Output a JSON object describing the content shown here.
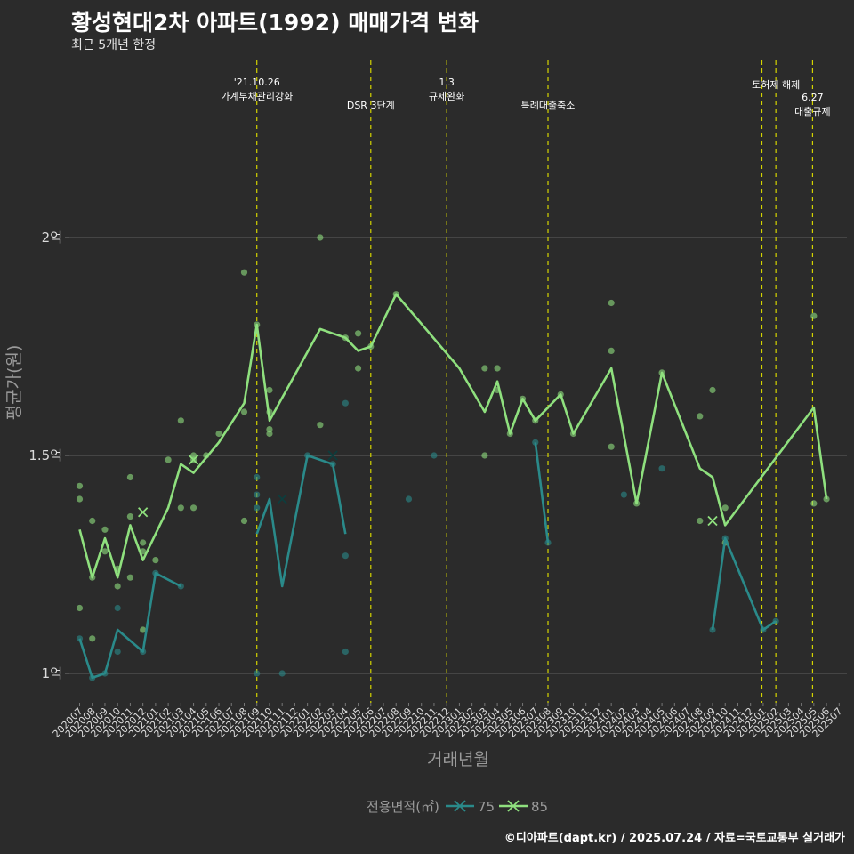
{
  "title": "황성현대2차 아파트(1992) 매매가격 변화",
  "subtitle": "최근 5개년 한정",
  "caption": "©디아파트(dapt.kr) / 2025.07.24 / 자료=국토교통부 실거래가",
  "colors": {
    "background": "#2b2b2b",
    "grid": "#555555",
    "s75": "#2a8a8a",
    "s85": "#8fe07e",
    "event": "#d4d400"
  },
  "chart_data": {
    "type": "line",
    "xlabel": "거래년월",
    "ylabel": "평균가(원)",
    "ylim": [
      0.93,
      2.45
    ],
    "y_ticks": [
      {
        "value": 1.0,
        "label": "1억"
      },
      {
        "value": 1.5,
        "label": "1.5억"
      },
      {
        "value": 2.0,
        "label": "2억"
      }
    ],
    "categories": [
      "202007",
      "202008",
      "202009",
      "202010",
      "202011",
      "202012",
      "202101",
      "202102",
      "202103",
      "202104",
      "202105",
      "202106",
      "202107",
      "202108",
      "202109",
      "202110",
      "202111",
      "202112",
      "202201",
      "202202",
      "202203",
      "202204",
      "202205",
      "202206",
      "202207",
      "202208",
      "202209",
      "202210",
      "202211",
      "202212",
      "202301",
      "202302",
      "202303",
      "202304",
      "202305",
      "202306",
      "202307",
      "202308",
      "202309",
      "202310",
      "202311",
      "202312",
      "202401",
      "202402",
      "202403",
      "202404",
      "202405",
      "202406",
      "202407",
      "202408",
      "202409",
      "202410",
      "202411",
      "202412",
      "202501",
      "202502",
      "202503",
      "202504",
      "202505",
      "202506",
      "202507"
    ],
    "legend_title": "전용면적(㎡)",
    "series": [
      {
        "name": "75",
        "line": [
          [
            [
              0,
              1.08
            ],
            [
              1,
              0.99
            ],
            [
              2,
              1.0
            ],
            [
              3,
              1.1
            ],
            [
              5,
              1.05
            ],
            [
              6,
              1.23
            ],
            [
              8,
              1.2
            ]
          ],
          [
            [
              14,
              1.32
            ],
            [
              15,
              1.4
            ],
            [
              16,
              1.2
            ],
            [
              18,
              1.5
            ],
            [
              20,
              1.48
            ],
            [
              21,
              1.32
            ]
          ],
          [
            [
              36,
              1.53
            ],
            [
              37,
              1.3
            ]
          ],
          [
            [
              50,
              1.1
            ],
            [
              51,
              1.31
            ],
            [
              54,
              1.1
            ],
            [
              55,
              1.12
            ]
          ]
        ],
        "points": [
          [
            0,
            1.08
          ],
          [
            1,
            0.99
          ],
          [
            2,
            1.0
          ],
          [
            3,
            1.15
          ],
          [
            3,
            1.05
          ],
          [
            5,
            1.05
          ],
          [
            6,
            1.23
          ],
          [
            8,
            1.2
          ],
          [
            14,
            1.45
          ],
          [
            14,
            1.41
          ],
          [
            14,
            1.38
          ],
          [
            14,
            1.0
          ],
          [
            16,
            1.0
          ],
          [
            18,
            1.5
          ],
          [
            20,
            1.48
          ],
          [
            21,
            1.62
          ],
          [
            21,
            1.27
          ],
          [
            21,
            1.05
          ],
          [
            26,
            1.4
          ],
          [
            28,
            1.5
          ],
          [
            36,
            1.53
          ],
          [
            37,
            1.3
          ],
          [
            43,
            1.41
          ],
          [
            46,
            1.47
          ],
          [
            50,
            1.1
          ],
          [
            51,
            1.31
          ],
          [
            54,
            1.1
          ],
          [
            55,
            1.12
          ]
        ],
        "x_marks": [
          [
            16,
            1.4
          ],
          [
            20,
            1.5
          ]
        ]
      },
      {
        "name": "85",
        "line": [
          [
            [
              0,
              1.33
            ],
            [
              1,
              1.22
            ],
            [
              2,
              1.31
            ],
            [
              3,
              1.22
            ],
            [
              4,
              1.34
            ],
            [
              5,
              1.26
            ],
            [
              7,
              1.38
            ],
            [
              8,
              1.48
            ],
            [
              9,
              1.46
            ],
            [
              11,
              1.53
            ],
            [
              13,
              1.62
            ],
            [
              14,
              1.8
            ],
            [
              15,
              1.58
            ],
            [
              19,
              1.79
            ],
            [
              20,
              1.78
            ],
            [
              21,
              1.77
            ],
            [
              22,
              1.74
            ],
            [
              23,
              1.75
            ],
            [
              25,
              1.87
            ],
            [
              30,
              1.7
            ],
            [
              32,
              1.6
            ],
            [
              33,
              1.67
            ],
            [
              34,
              1.55
            ],
            [
              35,
              1.63
            ],
            [
              36,
              1.58
            ],
            [
              38,
              1.64
            ],
            [
              39,
              1.55
            ],
            [
              42,
              1.7
            ],
            [
              44,
              1.39
            ],
            [
              46,
              1.69
            ],
            [
              49,
              1.47
            ],
            [
              50,
              1.45
            ],
            [
              51,
              1.34
            ],
            [
              58,
              1.61
            ],
            [
              59,
              1.4
            ]
          ]
        ],
        "points": [
          [
            0,
            1.43
          ],
          [
            0,
            1.4
          ],
          [
            0,
            1.15
          ],
          [
            1,
            1.35
          ],
          [
            1,
            1.22
          ],
          [
            1,
            1.08
          ],
          [
            2,
            1.33
          ],
          [
            2,
            1.28
          ],
          [
            3,
            1.24
          ],
          [
            3,
            1.2
          ],
          [
            4,
            1.45
          ],
          [
            4,
            1.36
          ],
          [
            4,
            1.22
          ],
          [
            5,
            1.3
          ],
          [
            5,
            1.28
          ],
          [
            5,
            1.1
          ],
          [
            6,
            1.26
          ],
          [
            7,
            1.49
          ],
          [
            8,
            1.58
          ],
          [
            8,
            1.38
          ],
          [
            9,
            1.5
          ],
          [
            9,
            1.49
          ],
          [
            9,
            1.38
          ],
          [
            10,
            1.5
          ],
          [
            11,
            1.55
          ],
          [
            13,
            1.92
          ],
          [
            13,
            1.6
          ],
          [
            13,
            1.35
          ],
          [
            14,
            1.8
          ],
          [
            15,
            1.65
          ],
          [
            15,
            1.6
          ],
          [
            15,
            1.56
          ],
          [
            15,
            1.55
          ],
          [
            19,
            2.0
          ],
          [
            19,
            1.57
          ],
          [
            21,
            1.77
          ],
          [
            22,
            1.78
          ],
          [
            22,
            1.7
          ],
          [
            23,
            1.75
          ],
          [
            25,
            1.87
          ],
          [
            32,
            1.7
          ],
          [
            32,
            1.5
          ],
          [
            33,
            1.7
          ],
          [
            33,
            1.65
          ],
          [
            34,
            1.55
          ],
          [
            35,
            1.63
          ],
          [
            36,
            1.58
          ],
          [
            38,
            1.64
          ],
          [
            39,
            1.55
          ],
          [
            42,
            1.85
          ],
          [
            42,
            1.74
          ],
          [
            42,
            1.52
          ],
          [
            44,
            1.39
          ],
          [
            46,
            1.69
          ],
          [
            49,
            1.59
          ],
          [
            49,
            1.35
          ],
          [
            50,
            1.65
          ],
          [
            51,
            1.38
          ],
          [
            51,
            1.3
          ],
          [
            58,
            1.82
          ],
          [
            58,
            1.39
          ],
          [
            59,
            1.4
          ]
        ],
        "x_marks": [
          [
            5,
            1.37
          ],
          [
            9,
            1.49
          ],
          [
            50,
            1.35
          ]
        ]
      }
    ],
    "events": [
      {
        "x": 14.0,
        "lines": [
          "'21.10.26",
          "가계부채관리강화"
        ]
      },
      {
        "x": 23.0,
        "lines": [
          "DSR 3단계"
        ]
      },
      {
        "x": 29.0,
        "lines": [
          "1.3",
          "규제완화"
        ]
      },
      {
        "x": 37.0,
        "lines": [
          "특례대출축소"
        ]
      },
      {
        "x": 53.9,
        "lines": []
      },
      {
        "x": 55.0,
        "lines": [
          "토허제 해제"
        ]
      },
      {
        "x": 57.9,
        "lines": [
          "6.27",
          "대출규제"
        ]
      }
    ]
  }
}
